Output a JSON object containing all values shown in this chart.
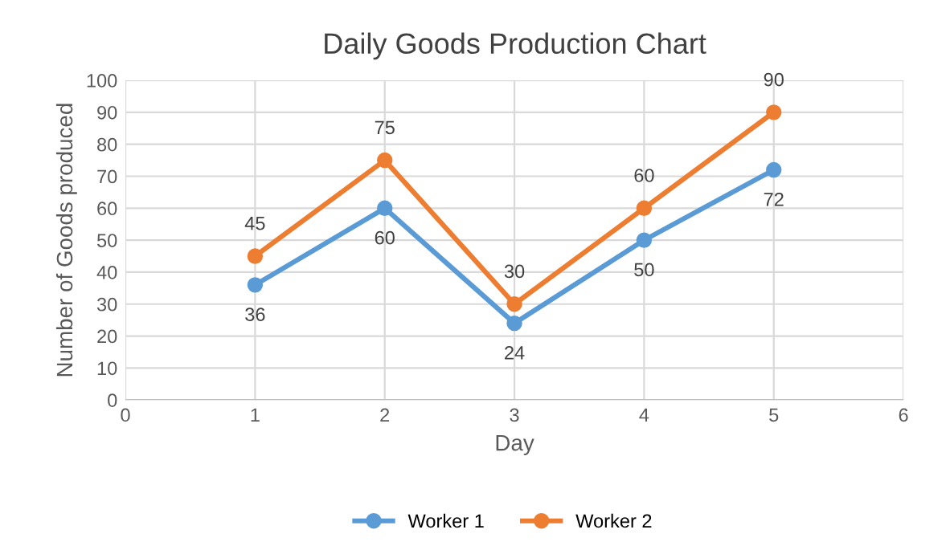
{
  "chart_data": {
    "type": "line",
    "title": "Daily Goods Production Chart",
    "xlabel": "Day",
    "ylabel": "Number of Goods produced",
    "x": [
      1,
      2,
      3,
      4,
      5
    ],
    "series": [
      {
        "name": "Worker 1",
        "color": "#5b9bd5",
        "values": [
          36,
          60,
          24,
          50,
          72
        ]
      },
      {
        "name": "Worker 2",
        "color": "#ed7d31",
        "values": [
          45,
          75,
          30,
          60,
          90
        ]
      }
    ],
    "xlim": [
      0,
      6
    ],
    "xticks": [
      0,
      1,
      2,
      3,
      4,
      5,
      6
    ],
    "ylim": [
      0,
      100
    ],
    "yticks": [
      0,
      10,
      20,
      30,
      40,
      50,
      60,
      70,
      80,
      90,
      100
    ],
    "grid": true,
    "legend": "bottom",
    "marker": "circle",
    "line_style": "solid",
    "data_labels": true
  }
}
